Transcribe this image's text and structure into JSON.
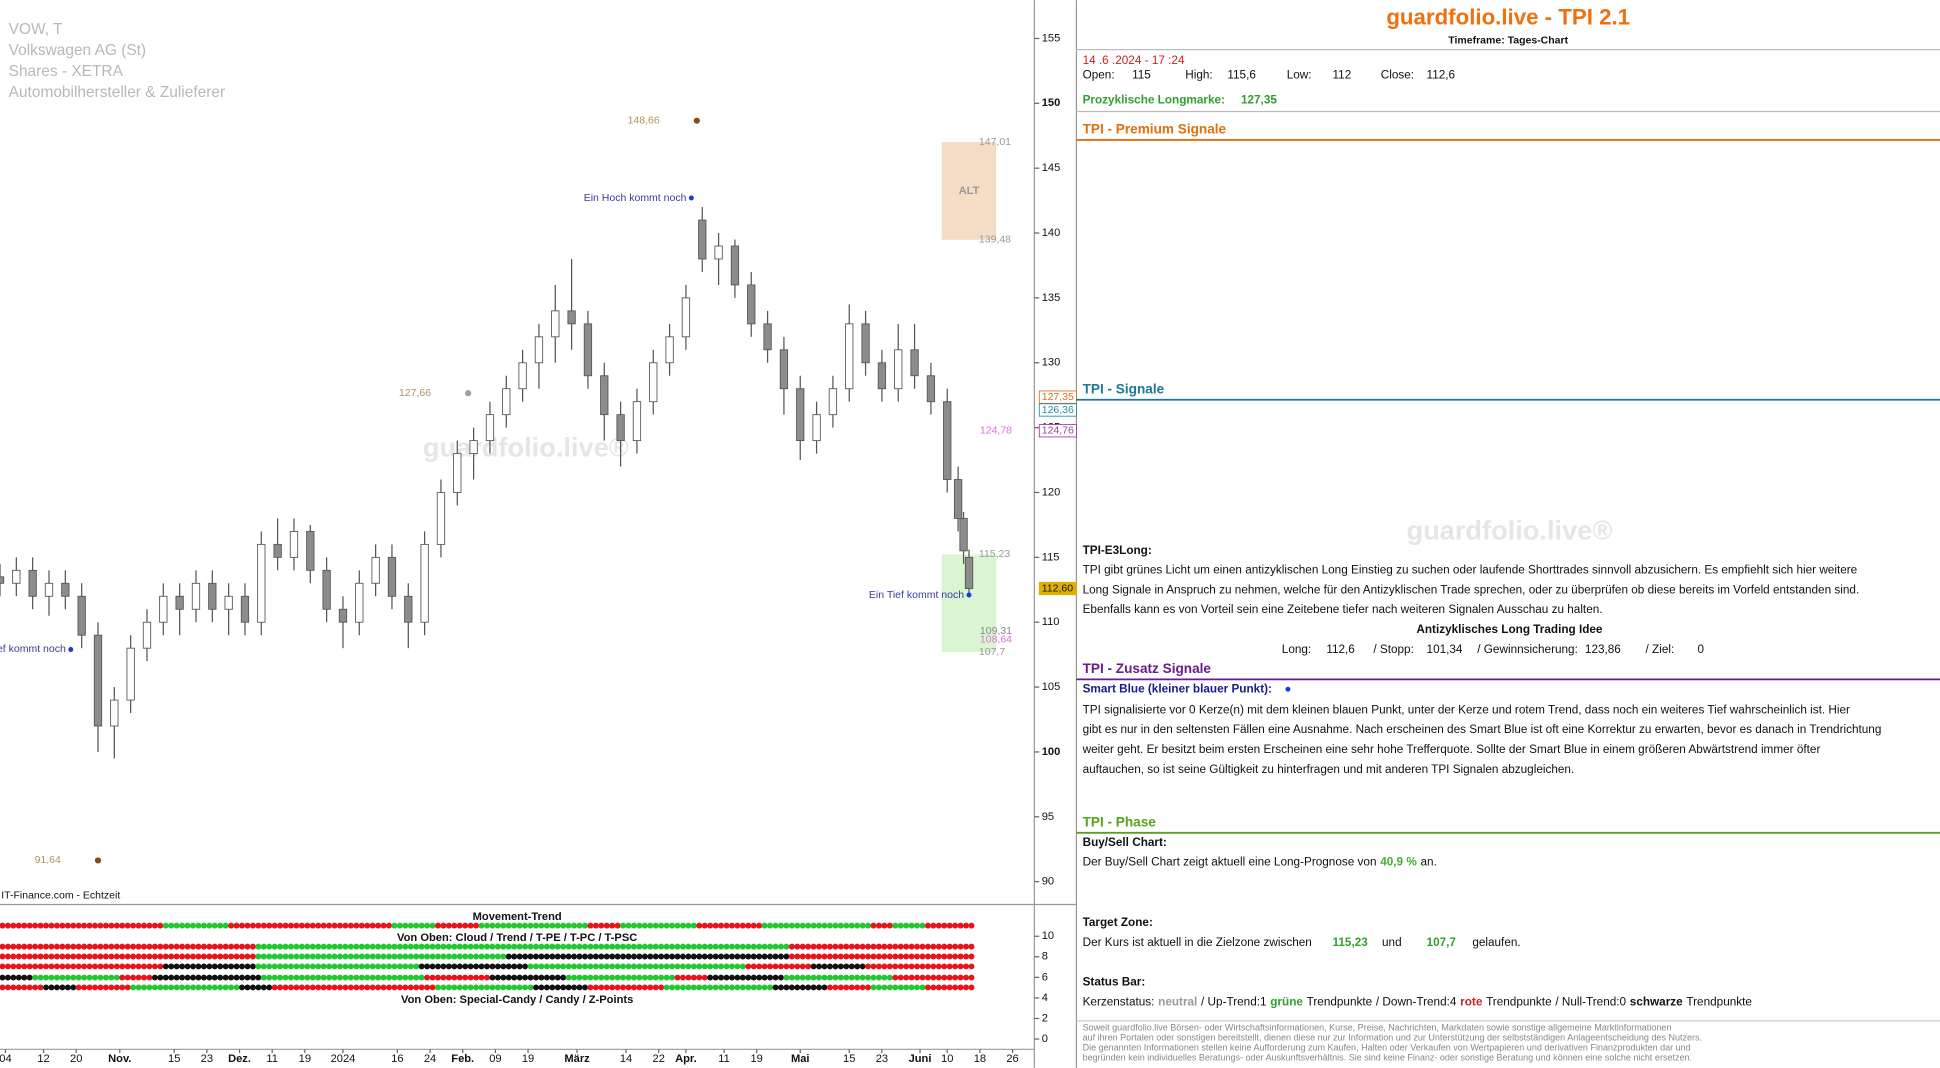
{
  "chart_data": {
    "type": "candlestick",
    "header": [
      "VOW, T",
      "Volkswagen AG (St)",
      "Shares - XETRA",
      "Automobilhersteller & Zulieferer"
    ],
    "source": "IT-Finance.com - Echtzeit",
    "watermark": "guardfolio.live®",
    "xlim": [
      0,
      190
    ],
    "xticks": [
      {
        "value": 1,
        "label": "04"
      },
      {
        "value": 8,
        "label": "12"
      },
      {
        "value": 14,
        "label": "20"
      },
      {
        "value": 22,
        "label": "Nov."
      },
      {
        "value": 32,
        "label": "15"
      },
      {
        "value": 38,
        "label": "23"
      },
      {
        "value": 44,
        "label": "Dez."
      },
      {
        "value": 50,
        "label": "11"
      },
      {
        "value": 56,
        "label": "19"
      },
      {
        "value": 63,
        "label": "2024"
      },
      {
        "value": 73,
        "label": "16"
      },
      {
        "value": 79,
        "label": "24"
      },
      {
        "value": 85,
        "label": "Feb."
      },
      {
        "value": 91,
        "label": "09"
      },
      {
        "value": 97,
        "label": "19"
      },
      {
        "value": 106,
        "label": "März"
      },
      {
        "value": 115,
        "label": "14"
      },
      {
        "value": 121,
        "label": "22"
      },
      {
        "value": 126,
        "label": "Apr."
      },
      {
        "value": 133,
        "label": "11"
      },
      {
        "value": 139,
        "label": "19"
      },
      {
        "value": 147,
        "label": "Mai"
      },
      {
        "value": 156,
        "label": "15"
      },
      {
        "value": 162,
        "label": "23"
      },
      {
        "value": 169,
        "label": "Juni"
      },
      {
        "value": 174,
        "label": "10"
      },
      {
        "value": 180,
        "label": "18"
      },
      {
        "value": 186,
        "label": "26"
      }
    ],
    "ylim": [
      89,
      157
    ],
    "yticks": [
      90,
      95,
      100,
      105,
      110,
      115,
      120,
      125,
      130,
      135,
      140,
      145,
      150,
      155
    ],
    "up_color": "#ffffff",
    "down_color": "#8c8c8c",
    "edge_color": "#555555",
    "candles": {
      "x": [
        0,
        3,
        6,
        9,
        12,
        15,
        18,
        21,
        24,
        27,
        30,
        33,
        36,
        39,
        42,
        45,
        48,
        51,
        54,
        57,
        60,
        63,
        66,
        69,
        72,
        75,
        78,
        81,
        84,
        87,
        90,
        93,
        96,
        99,
        102,
        105,
        108,
        111,
        114,
        117,
        120,
        123,
        126,
        129,
        132,
        135,
        138,
        141,
        144,
        147,
        150,
        153,
        156,
        159,
        162,
        165,
        168,
        171,
        174,
        176,
        177,
        178
      ],
      "open": [
        113.5,
        113,
        114,
        112,
        113,
        112,
        109,
        102,
        104,
        108,
        110,
        112,
        111,
        113,
        111,
        112,
        110,
        116,
        115,
        117,
        114,
        111,
        110,
        113,
        115,
        112,
        110,
        116,
        120,
        123,
        124,
        126,
        128,
        130,
        132,
        134,
        133,
        129,
        126,
        124,
        127,
        130,
        132,
        141,
        138,
        139,
        136,
        133,
        131,
        128,
        124,
        126,
        128,
        133,
        130,
        128,
        131,
        129,
        127,
        121,
        118,
        115
      ],
      "high": [
        114.5,
        115,
        115,
        114,
        114,
        113,
        110,
        105,
        109,
        111,
        113,
        113,
        114,
        114,
        113,
        113,
        117,
        118,
        118,
        117.5,
        115,
        112,
        114,
        116,
        116,
        113,
        117,
        121,
        124,
        125,
        127,
        129,
        131,
        133,
        136,
        138,
        134,
        130,
        127,
        128,
        131,
        133,
        136,
        142,
        140,
        139.5,
        137,
        134,
        132,
        129,
        127,
        129,
        134.5,
        134,
        131,
        133,
        133,
        130,
        128,
        122,
        118.5,
        115.6
      ],
      "low": [
        112,
        112,
        111,
        110.5,
        111,
        108,
        100,
        99.5,
        103,
        107,
        109,
        109,
        110,
        110,
        109,
        109,
        109,
        114,
        114,
        113,
        110,
        108,
        109,
        112,
        111,
        108,
        109,
        115,
        119,
        121,
        123,
        125,
        127,
        128,
        130,
        131,
        128,
        124,
        122,
        123,
        126,
        129,
        131,
        137,
        136,
        135,
        132,
        130,
        126,
        122.5,
        123,
        125,
        127,
        129,
        127,
        127,
        128,
        126,
        120,
        117,
        114.5,
        112
      ],
      "close": [
        113,
        114,
        112,
        113,
        112,
        109,
        102,
        104,
        108,
        110,
        112,
        111,
        113,
        111,
        112,
        110,
        116,
        115,
        117,
        114,
        111,
        110,
        113,
        115,
        112,
        110,
        116,
        120,
        123,
        124,
        126,
        128,
        130,
        132,
        134,
        133,
        129,
        126,
        124,
        127,
        130,
        132,
        135,
        138,
        139,
        136,
        133,
        131,
        128,
        124,
        126,
        128,
        133,
        130,
        128,
        131,
        129,
        127,
        121,
        118,
        115.5,
        112.6
      ]
    },
    "annotations": [
      {
        "x": 128,
        "value": 148.66,
        "label": "148,66",
        "color": "#8b4a10"
      },
      {
        "x": 86,
        "value": 127.66,
        "label": "127,66",
        "color": "#a0a0a0"
      },
      {
        "x": 18,
        "value": 91.64,
        "label": "91,64",
        "color": "#8b4a10"
      }
    ],
    "notes": [
      {
        "x": 127,
        "value": 142.7,
        "text": "Ein Hoch kommt noch"
      },
      {
        "x": 178,
        "value": 112.1,
        "text": "Ein Tief kommt noch"
      },
      {
        "x": 13,
        "value": 107.9,
        "text": "ef kommt noch"
      }
    ],
    "zones": [
      {
        "label": "ALT",
        "top": {
          "value": 147.01,
          "label": "147,01"
        },
        "bottom": {
          "value": 139.48,
          "label": "139,48"
        },
        "color": "#f5dcc5"
      },
      {
        "top": {
          "value": 115.23,
          "label": "115,23"
        },
        "bottom": {
          "value": 107.7,
          "label": "107,7"
        },
        "color": "#d9f5d2"
      }
    ],
    "levels": [
      {
        "value": 124.78,
        "label": "124,78",
        "color": "#e070e0"
      },
      {
        "value": 109.31,
        "label": "109,31",
        "color": "#888888"
      },
      {
        "value": 108.64,
        "label": "108,64",
        "color": "#e070e0"
      }
    ],
    "price_tags": [
      {
        "value": 127.35,
        "label": "127,35",
        "color": "#e07020"
      },
      {
        "value": 126.36,
        "label": "126,36",
        "color": "#2090a0"
      },
      {
        "value": 124.76,
        "label": "124,76",
        "color": "#a040a0"
      },
      {
        "value": 112.6,
        "label": "112,60",
        "color": "#e0b000"
      }
    ],
    "indicator": {
      "title": "Movement-Trend",
      "subtitle1": "Von Oben: Cloud / Trend / T-PE / T-PC / T-PSC",
      "subtitle2": "Von Oben: Special-Candy / Candy / Z-Points",
      "ylim": [
        -1,
        12
      ],
      "yticks": [
        0,
        2,
        4,
        6,
        8,
        10
      ],
      "colors": {
        "r": "#e8141c",
        "g": "#22c832",
        "k": "#111111"
      },
      "rows": [
        [
          [
            "r",
            30
          ],
          [
            "g",
            12
          ],
          [
            "r",
            30
          ],
          [
            "g",
            8
          ],
          [
            "r",
            8
          ],
          [
            "g",
            20
          ],
          [
            "r",
            6
          ],
          [
            "g",
            14
          ],
          [
            "r",
            12
          ],
          [
            "g",
            20
          ],
          [
            "r",
            4
          ],
          [
            "g",
            6
          ],
          [
            "r",
            9
          ]
        ],
        [
          [
            "r",
            47
          ],
          [
            "g",
            98
          ],
          [
            "r",
            34
          ]
        ],
        [
          [
            "r",
            47
          ],
          [
            "g",
            46
          ],
          [
            "k",
            52
          ],
          [
            "r",
            34
          ]
        ],
        [
          [
            "r",
            30
          ],
          [
            "k",
            17
          ],
          [
            "g",
            30
          ],
          [
            "k",
            20
          ],
          [
            "g",
            40
          ],
          [
            "r",
            12
          ],
          [
            "k",
            10
          ],
          [
            "r",
            20
          ]
        ],
        [
          [
            "k",
            6
          ],
          [
            "g",
            16
          ],
          [
            "r",
            6
          ],
          [
            "k",
            20
          ],
          [
            "g",
            30
          ],
          [
            "r",
            12
          ],
          [
            "k",
            14
          ],
          [
            "g",
            20
          ],
          [
            "r",
            6
          ],
          [
            "k",
            14
          ],
          [
            "g",
            20
          ],
          [
            "r",
            15
          ]
        ],
        [
          [
            "r",
            8
          ],
          [
            "k",
            6
          ],
          [
            "r",
            10
          ],
          [
            "g",
            20
          ],
          [
            "k",
            6
          ],
          [
            "r",
            30
          ],
          [
            "g",
            18
          ],
          [
            "k",
            10
          ],
          [
            "r",
            14
          ],
          [
            "g",
            20
          ],
          [
            "k",
            10
          ],
          [
            "r",
            8
          ],
          [
            "g",
            10
          ],
          [
            "r",
            9
          ]
        ]
      ]
    }
  },
  "panel": {
    "title": "guardfolio.live - TPI 2.1",
    "timeframe": "Timeframe: Tages-Chart",
    "datetime": "14 .6 .2024 - 17 :24",
    "ohlc": [
      {
        "label": "Open:",
        "value": "115"
      },
      {
        "label": "High:",
        "value": "115,6"
      },
      {
        "label": "Low:",
        "value": "112"
      },
      {
        "label": "Close:",
        "value": "112,6"
      }
    ],
    "longmarke": {
      "label": "Prozyklische Longmarke:",
      "value": "127,35"
    },
    "sections": [
      "TPI - Premium Signale",
      "TPI - Signale",
      "TPI - Zusatz Signale",
      "TPI - Phase"
    ],
    "watermark": "guardfolio.live®",
    "e3long": {
      "heading": "TPI-E3Long:",
      "lines": [
        "TPI gibt grünes Licht um einen antizyklischen Long Einstieg zu suchen oder laufende Shorttrades sinnvoll abzusichern. Es empfiehlt sich hier weitere",
        "Long Signale in Anspruch zu nehmen, welche für den Antizyklischen Trade sprechen, oder zu überprüfen ob diese bereits im Vorfeld entstanden sind.",
        "Ebenfalls kann es von Vorteil sein eine Zeitebene tiefer nach weiteren Signalen Ausschau zu halten."
      ],
      "idea": "Antizyklisches Long Trading Idee",
      "idea_values": [
        {
          "label": "Long:",
          "value": "112,6"
        },
        {
          "label": "/ Stopp:",
          "value": "101,34"
        },
        {
          "label": "/ Gewinnsicherung:",
          "value": "123,86"
        },
        {
          "label": "/ Ziel:",
          "value": "0"
        }
      ]
    },
    "smart_blue": {
      "heading": "Smart Blue (kleiner blauer Punkt):",
      "lines": [
        "TPI signalisierte vor 0  Kerze(n) mit dem kleinen blauen Punkt, unter der Kerze und rotem Trend, dass noch ein weiteres Tief wahrscheinlich ist. Hier",
        "gibt es nur in den seltensten Fällen eine Ausnahme. Nach erscheinen des Smart Blue ist oft eine Korrektur zu erwarten, bevor es danach in Trendrichtung",
        " weiter geht. Er besitzt beim ersten Erscheinen eine sehr hohe Trefferquote. Sollte der Smart Blue in einem größeren Abwärtstrend immer öfter",
        "auftauchen, so ist seine Gültigkeit zu hinterfragen und mit anderen TPI Signalen abzugleichen."
      ]
    },
    "buy_sell": {
      "heading": "Buy/Sell Chart:",
      "text": "Der Buy/Sell Chart zeigt aktuell eine Long-Prognose von",
      "value": "40,9 %",
      "after": "an."
    },
    "target": {
      "heading": "Target Zone:",
      "text": "Der Kurs ist aktuell in die Zielzone zwischen",
      "from": "115,23",
      "joiner": "und",
      "to": "107,7",
      "after": "gelaufen."
    },
    "status": {
      "heading": "Status Bar:",
      "segments": [
        "Kerzenstatus:",
        "neutral",
        "/ Up-Trend:1",
        "grüne",
        "Trendpunkte",
        "/ Down-Trend:4",
        "rote",
        "Trendpunkte",
        "/ Null-Trend:0",
        "schwarze",
        "Trendpunkte"
      ]
    },
    "disclaimer": [
      "Soweit guardfolio.live Börsen- oder Wirtschaftsinformationen, Kurse, Preise, Nachrichten, Markdaten sowie sonstige allgemeine Marktinformationen",
      "auf ihren Portalen oder sonstigen bereitstellt, dienen diese nur zur Information und zur Unterstützung der selbstständigen Anlageentscheidung des Nutzers.",
      "Die genannten Informationen stellen keine Aufforderung zum Kaufen, Halten oder Verkaufen von Wertpapieren und derivativen Finanzprodukten dar und",
      "begründen kein individuelles Beratungs- oder Auskunftsverhältnis. Sie sind keine Finanz- oder sonstige Beratung und können eine solche nicht ersetzen."
    ]
  }
}
